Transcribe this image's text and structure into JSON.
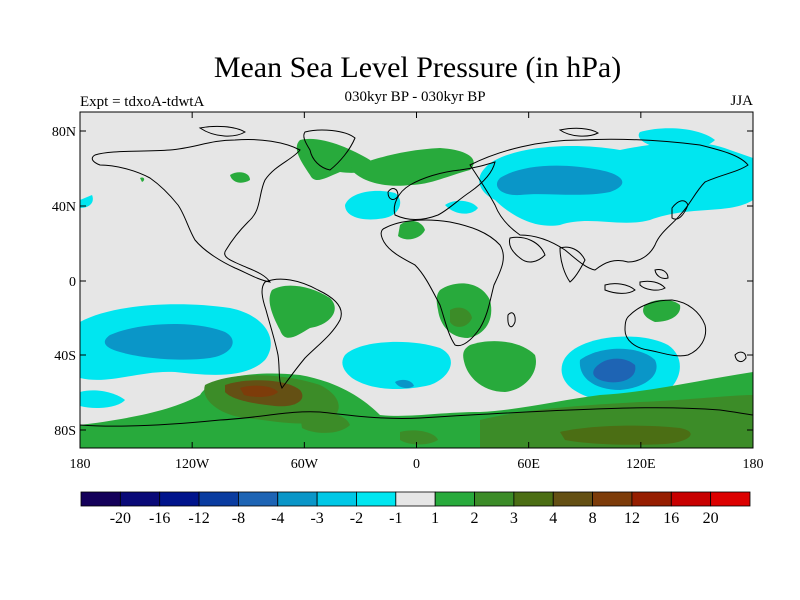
{
  "header": {
    "title": "Mean Sea Level Pressure (in hPa)",
    "subtitle": "030kyr BP - 030kyr BP",
    "experiment": "Expt = tdxoA-tdwtA",
    "season": "JJA"
  },
  "map": {
    "lat_ticks": [
      "80N",
      "40N",
      "0",
      "40S",
      "80S"
    ],
    "lon_ticks": [
      "180",
      "120W",
      "60W",
      "0",
      "60E",
      "120E",
      "180"
    ],
    "background_color": "#e6e6e6"
  },
  "colorbar": {
    "colors": [
      "#14005a",
      "#0a0a78",
      "#00148c",
      "#0a3ca0",
      "#1e64b4",
      "#0a96c8",
      "#00c8e6",
      "#00e6f0",
      "#e6e6e6",
      "#28aa3c",
      "#3c8c28",
      "#4b6e14",
      "#645014",
      "#7d3c0a",
      "#961e00",
      "#c80000",
      "#dc0000"
    ],
    "labels": [
      "-20",
      "-16",
      "-12",
      "-8",
      "-4",
      "-3",
      "-2",
      "-1",
      "1",
      "2",
      "3",
      "4",
      "8",
      "12",
      "16",
      "20"
    ]
  }
}
